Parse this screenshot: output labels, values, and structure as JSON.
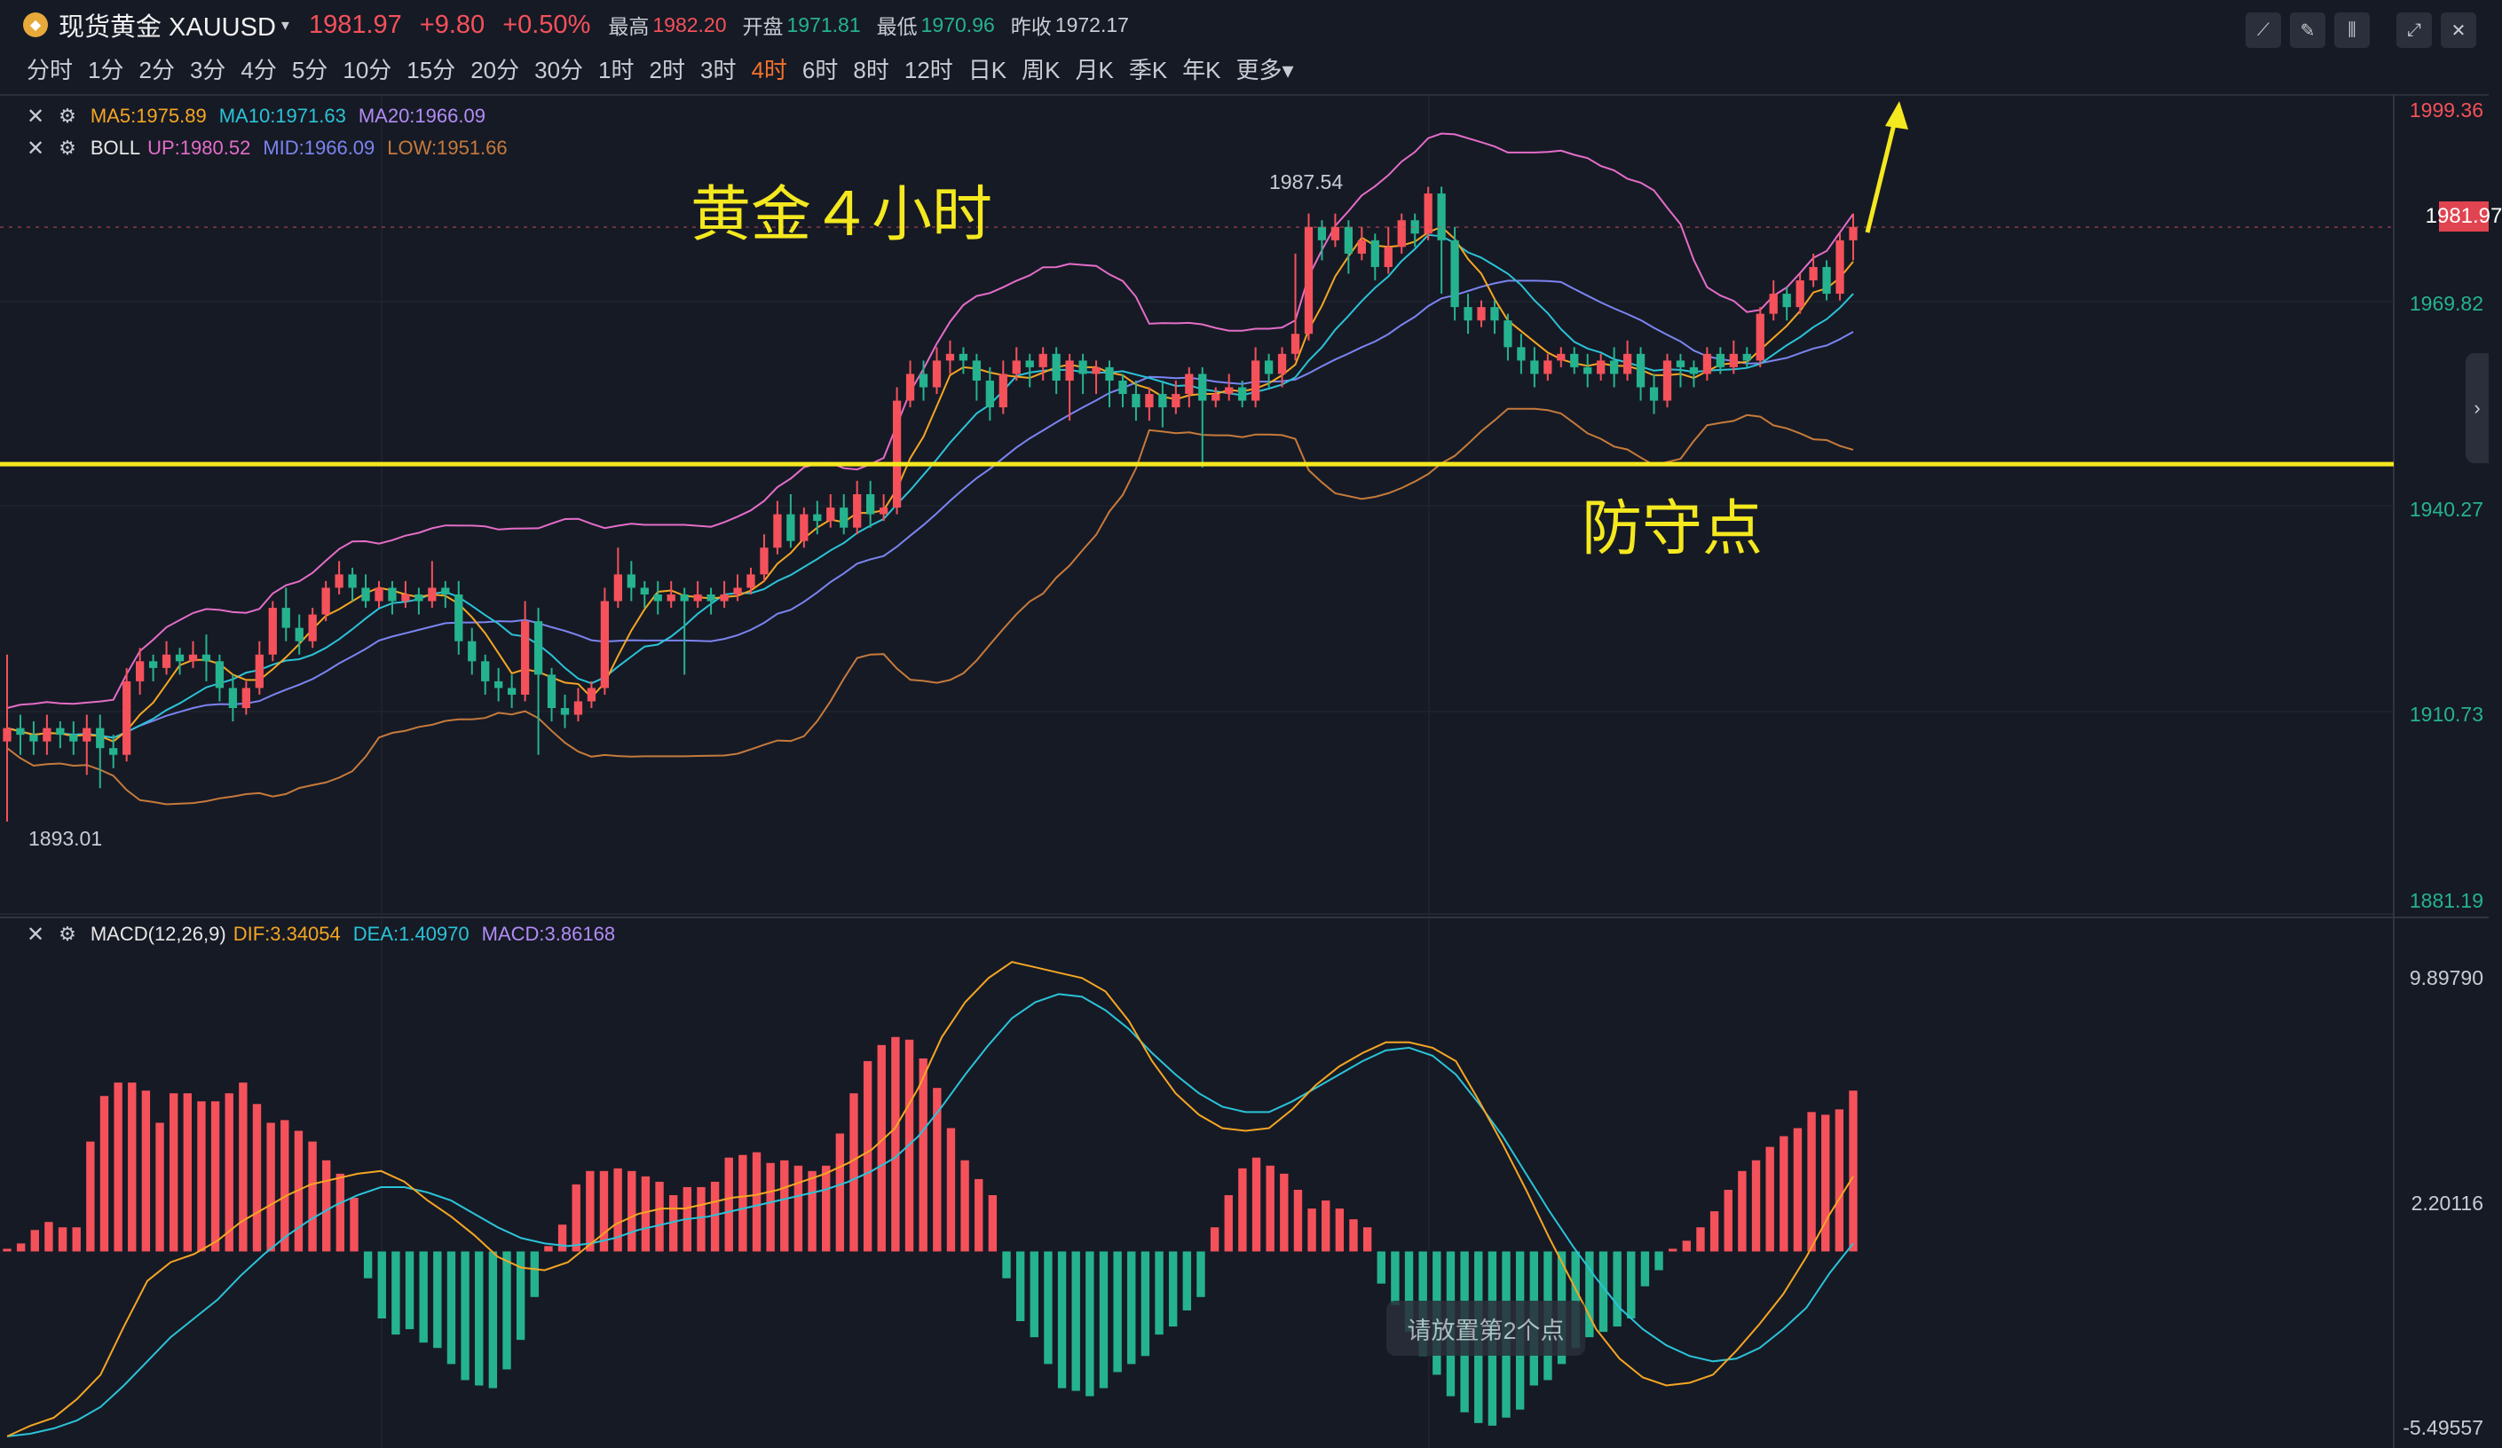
{
  "header": {
    "logo_icon": "gold-coin-icon",
    "symbol": "现货黄金 XAUUSD",
    "price": "1981.97",
    "change": "+9.80",
    "change_pct": "+0.50%",
    "high_label": "最高",
    "high": "1982.20",
    "open_label": "开盘",
    "open": "1971.81",
    "low_label": "最低",
    "low": "1970.96",
    "prev_close_label": "昨收",
    "prev_close": "1972.17",
    "colors": {
      "up": "#f5515a",
      "down": "#25b38f"
    }
  },
  "toolbar_icons": [
    "line-draw-icon",
    "pencil-icon",
    "candle-settings-icon",
    "fullscreen-icon",
    "close-icon"
  ],
  "periods": [
    "分时",
    "1分",
    "2分",
    "3分",
    "4分",
    "5分",
    "10分",
    "15分",
    "20分",
    "30分",
    "1时",
    "2时",
    "3时",
    "4时",
    "6时",
    "8时",
    "12时",
    "日K",
    "周K",
    "月K",
    "季K",
    "年K",
    "更多"
  ],
  "active_period": "4时",
  "indicators": {
    "ma": {
      "ma5": "MA5:1975.89",
      "ma10": "MA10:1971.63",
      "ma20": "MA20:1966.09"
    },
    "boll": {
      "name": "BOLL",
      "up": "UP:1980.52",
      "mid": "MID:1966.09",
      "low": "LOW:1951.66"
    },
    "macd": {
      "name": "MACD(12,26,9)",
      "dif": "DIF:3.34054",
      "dea": "DEA:1.40970",
      "macd": "MACD:3.86168"
    }
  },
  "price_axis": [
    "1999.36",
    "1969.82",
    "1940.27",
    "1910.73",
    "1881.19"
  ],
  "current_price_tag": "1981.97",
  "marks": {
    "high": "1987.54",
    "low": "1893.01"
  },
  "macd_axis": [
    "9.89790",
    "2.20116",
    "-5.49557"
  ],
  "annotations": {
    "title": "黄金４小时",
    "support": "防守点"
  },
  "hint": "请放置第2个点",
  "chart_data": {
    "type": "candlestick",
    "title": "",
    "ylim": [
      1881.19,
      1999.36
    ],
    "support_level": 1946.5,
    "candles": [
      [
        1905,
        1907,
        1918,
        1893
      ],
      [
        1907,
        1906,
        1909,
        1903
      ],
      [
        1906,
        1905,
        1908,
        1903
      ],
      [
        1905,
        1907,
        1909,
        1903
      ],
      [
        1907,
        1906,
        1908,
        1904
      ],
      [
        1906,
        1905,
        1908,
        1903
      ],
      [
        1905,
        1907,
        1909,
        1900
      ],
      [
        1907,
        1904,
        1909,
        1898
      ],
      [
        1904,
        1903,
        1906,
        1901
      ],
      [
        1903,
        1914,
        1916,
        1902
      ],
      [
        1914,
        1917,
        1919,
        1912
      ],
      [
        1917,
        1916,
        1918,
        1914
      ],
      [
        1916,
        1918,
        1920,
        1915
      ],
      [
        1918,
        1917,
        1919,
        1915
      ],
      [
        1917,
        1918,
        1920,
        1916
      ],
      [
        1918,
        1917,
        1921,
        1914
      ],
      [
        1917,
        1913,
        1918,
        1911
      ],
      [
        1913,
        1910,
        1915,
        1908
      ],
      [
        1910,
        1913,
        1914,
        1909
      ],
      [
        1913,
        1918,
        1920,
        1912
      ],
      [
        1918,
        1925,
        1926,
        1917
      ],
      [
        1925,
        1922,
        1928,
        1920
      ],
      [
        1922,
        1920,
        1924,
        1918
      ],
      [
        1920,
        1924,
        1925,
        1919
      ],
      [
        1924,
        1928,
        1929,
        1923
      ],
      [
        1928,
        1930,
        1932,
        1927
      ],
      [
        1930,
        1928,
        1931,
        1926
      ],
      [
        1928,
        1926,
        1930,
        1925
      ],
      [
        1926,
        1928,
        1929,
        1925
      ],
      [
        1928,
        1926,
        1929,
        1924
      ],
      [
        1926,
        1927,
        1929,
        1925
      ],
      [
        1927,
        1926,
        1928,
        1924
      ],
      [
        1926,
        1928,
        1932,
        1925
      ],
      [
        1928,
        1927,
        1929,
        1925
      ],
      [
        1927,
        1920,
        1929,
        1918
      ],
      [
        1920,
        1917,
        1922,
        1915
      ],
      [
        1917,
        1914,
        1918,
        1912
      ],
      [
        1914,
        1913,
        1916,
        1911
      ],
      [
        1913,
        1912,
        1915,
        1910
      ],
      [
        1912,
        1923,
        1926,
        1911
      ],
      [
        1923,
        1915,
        1925,
        1903
      ],
      [
        1915,
        1910,
        1916,
        1908
      ],
      [
        1910,
        1909,
        1912,
        1907
      ],
      [
        1909,
        1911,
        1913,
        1908
      ],
      [
        1911,
        1913,
        1914,
        1910
      ],
      [
        1913,
        1926,
        1928,
        1912
      ],
      [
        1926,
        1930,
        1934,
        1925
      ],
      [
        1930,
        1928,
        1932,
        1926
      ],
      [
        1928,
        1927,
        1929,
        1925
      ],
      [
        1927,
        1926,
        1929,
        1924
      ],
      [
        1926,
        1927,
        1929,
        1925
      ],
      [
        1927,
        1926,
        1928,
        1915
      ],
      [
        1926,
        1927,
        1929,
        1925
      ],
      [
        1927,
        1926,
        1928,
        1924
      ],
      [
        1926,
        1927,
        1929,
        1925
      ],
      [
        1927,
        1928,
        1930,
        1926
      ],
      [
        1928,
        1930,
        1931,
        1927
      ],
      [
        1930,
        1934,
        1936,
        1929
      ],
      [
        1934,
        1939,
        1941,
        1933
      ],
      [
        1939,
        1935,
        1942,
        1934
      ],
      [
        1935,
        1939,
        1940,
        1934
      ],
      [
        1939,
        1938,
        1941,
        1936
      ],
      [
        1938,
        1940,
        1942,
        1937
      ],
      [
        1940,
        1937,
        1942,
        1936
      ],
      [
        1937,
        1942,
        1944,
        1936
      ],
      [
        1942,
        1939,
        1944,
        1937
      ],
      [
        1939,
        1940,
        1942,
        1938
      ],
      [
        1940,
        1956,
        1958,
        1939
      ],
      [
        1956,
        1960,
        1962,
        1955
      ],
      [
        1960,
        1958,
        1962,
        1956
      ],
      [
        1958,
        1962,
        1964,
        1957
      ],
      [
        1962,
        1963,
        1965,
        1960
      ],
      [
        1963,
        1962,
        1964,
        1960
      ],
      [
        1962,
        1959,
        1963,
        1956
      ],
      [
        1959,
        1955,
        1961,
        1953
      ],
      [
        1955,
        1960,
        1962,
        1954
      ],
      [
        1960,
        1962,
        1964,
        1959
      ],
      [
        1962,
        1961,
        1963,
        1958
      ],
      [
        1961,
        1963,
        1964,
        1959
      ],
      [
        1963,
        1959,
        1964,
        1957
      ],
      [
        1959,
        1962,
        1963,
        1953
      ],
      [
        1962,
        1960,
        1963,
        1957
      ],
      [
        1960,
        1961,
        1962,
        1957
      ],
      [
        1961,
        1959,
        1962,
        1955
      ],
      [
        1959,
        1957,
        1960,
        1955
      ],
      [
        1957,
        1955,
        1959,
        1953
      ],
      [
        1955,
        1957,
        1958,
        1953
      ],
      [
        1957,
        1955,
        1959,
        1952
      ],
      [
        1955,
        1957,
        1959,
        1954
      ],
      [
        1957,
        1960,
        1961,
        1955
      ],
      [
        1960,
        1956,
        1961,
        1946
      ],
      [
        1956,
        1957,
        1958,
        1955
      ],
      [
        1957,
        1958,
        1960,
        1956
      ],
      [
        1958,
        1956,
        1959,
        1955
      ],
      [
        1956,
        1962,
        1964,
        1955
      ],
      [
        1962,
        1960,
        1963,
        1958
      ],
      [
        1960,
        1963,
        1964,
        1958
      ],
      [
        1963,
        1966,
        1978,
        1962
      ],
      [
        1966,
        1982,
        1984,
        1965
      ],
      [
        1982,
        1980,
        1983,
        1977
      ],
      [
        1980,
        1982,
        1984,
        1979
      ],
      [
        1982,
        1978,
        1983,
        1975
      ],
      [
        1978,
        1980,
        1982,
        1977
      ],
      [
        1980,
        1976,
        1981,
        1974
      ],
      [
        1976,
        1979,
        1982,
        1975
      ],
      [
        1979,
        1983,
        1984,
        1978
      ],
      [
        1983,
        1981,
        1984,
        1979
      ],
      [
        1981,
        1987,
        1988,
        1980
      ],
      [
        1987,
        1980,
        1988,
        1972
      ],
      [
        1980,
        1970,
        1982,
        1968
      ],
      [
        1970,
        1968,
        1972,
        1966
      ],
      [
        1968,
        1970,
        1971,
        1967
      ],
      [
        1970,
        1968,
        1971,
        1966
      ],
      [
        1968,
        1964,
        1969,
        1962
      ],
      [
        1964,
        1962,
        1966,
        1960
      ],
      [
        1962,
        1960,
        1964,
        1958
      ],
      [
        1960,
        1962,
        1963,
        1959
      ],
      [
        1962,
        1963,
        1964,
        1961
      ],
      [
        1963,
        1961,
        1964,
        1960
      ],
      [
        1961,
        1960,
        1963,
        1958
      ],
      [
        1960,
        1962,
        1963,
        1959
      ],
      [
        1962,
        1960,
        1964,
        1958
      ],
      [
        1960,
        1963,
        1965,
        1959
      ],
      [
        1963,
        1958,
        1964,
        1956
      ],
      [
        1958,
        1956,
        1960,
        1954
      ],
      [
        1956,
        1962,
        1963,
        1955
      ],
      [
        1962,
        1961,
        1963,
        1958
      ],
      [
        1961,
        1960,
        1962,
        1958
      ],
      [
        1960,
        1963,
        1964,
        1959
      ],
      [
        1963,
        1961,
        1964,
        1960
      ],
      [
        1961,
        1963,
        1965,
        1960
      ],
      [
        1963,
        1962,
        1964,
        1961
      ],
      [
        1962,
        1969,
        1970,
        1961
      ],
      [
        1969,
        1972,
        1974,
        1968
      ],
      [
        1972,
        1970,
        1973,
        1968
      ],
      [
        1970,
        1974,
        1975,
        1969
      ],
      [
        1974,
        1976,
        1978,
        1973
      ],
      [
        1976,
        1972,
        1977,
        1971
      ],
      [
        1972,
        1980,
        1981,
        1971
      ],
      [
        1980,
        1982,
        1984,
        1977
      ]
    ],
    "macd_hist": [
      0.1,
      0.3,
      0.8,
      1.1,
      0.9,
      0.9,
      4.1,
      5.8,
      6.3,
      6.3,
      6.0,
      4.8,
      5.9,
      5.9,
      5.6,
      5.6,
      5.9,
      6.3,
      5.5,
      4.8,
      4.9,
      4.5,
      4.1,
      3.4,
      2.9,
      2.0,
      -1.0,
      -2.5,
      -3.1,
      -2.9,
      -3.4,
      -3.6,
      -4.2,
      -4.8,
      -5.0,
      -5.1,
      -4.4,
      -3.3,
      -1.7,
      0.2,
      1.0,
      2.5,
      3.0,
      3.0,
      3.1,
      3.0,
      2.8,
      2.6,
      2.1,
      2.4,
      2.4,
      2.6,
      3.5,
      3.6,
      3.7,
      3.3,
      3.4,
      3.2,
      3.0,
      3.2,
      4.4,
      5.9,
      7.1,
      7.7,
      8.0,
      7.9,
      7.2,
      6.1,
      4.6,
      3.4,
      2.7,
      2.1,
      -1.0,
      -2.6,
      -3.2,
      -4.2,
      -5.1,
      -5.2,
      -5.4,
      -5.1,
      -4.5,
      -4.2,
      -3.9,
      -3.1,
      -2.8,
      -2.2,
      -1.7,
      0.9,
      2.1,
      3.1,
      3.5,
      3.2,
      2.9,
      2.3,
      1.6,
      1.9,
      1.6,
      1.2,
      0.9,
      -1.2,
      -2.0,
      -3.0,
      -3.9,
      -4.6,
      -5.4,
      -6.0,
      -6.4,
      -6.5,
      -6.2,
      -5.9,
      -5.0,
      -4.8,
      -4.2,
      -3.6,
      -3.2,
      -3.0,
      -2.8,
      -2.5,
      -1.3,
      -0.7,
      0.1,
      0.4,
      0.9,
      1.5,
      2.3,
      3.0,
      3.4,
      3.9,
      4.3,
      4.6,
      5.2,
      5.1,
      5.3,
      6.0
    ],
    "dif": [
      -6.9,
      -6.5,
      -6.2,
      -5.5,
      -4.6,
      -2.8,
      -1.1,
      -0.4,
      -0.1,
      0.4,
      1.1,
      1.6,
      2.1,
      2.5,
      2.7,
      2.9,
      3.0,
      2.6,
      1.9,
      1.3,
      0.6,
      -0.2,
      -0.6,
      -0.7,
      -0.4,
      0.3,
      1.0,
      1.4,
      1.6,
      1.6,
      1.8,
      2.0,
      2.1,
      2.3,
      2.6,
      2.9,
      3.3,
      3.8,
      4.6,
      6.1,
      8.0,
      9.3,
      10.2,
      10.8,
      10.6,
      10.4,
      10.2,
      9.7,
      8.6,
      7.1,
      5.9,
      5.1,
      4.6,
      4.5,
      4.6,
      5.3,
      6.2,
      6.9,
      7.4,
      7.8,
      7.8,
      7.6,
      7.1,
      5.6,
      4.0,
      2.3,
      0.5,
      -1.2,
      -2.9,
      -4.0,
      -4.7,
      -5.0,
      -4.9,
      -4.6,
      -3.7,
      -2.7,
      -1.6,
      -0.2,
      1.4,
      2.8
    ],
    "dea": [
      -6.9,
      -6.8,
      -6.6,
      -6.3,
      -5.8,
      -5.0,
      -4.1,
      -3.2,
      -2.5,
      -1.8,
      -0.9,
      -0.1,
      0.6,
      1.2,
      1.7,
      2.1,
      2.4,
      2.4,
      2.2,
      1.9,
      1.4,
      0.9,
      0.5,
      0.3,
      0.2,
      0.3,
      0.5,
      0.8,
      1.0,
      1.2,
      1.3,
      1.5,
      1.7,
      1.9,
      2.1,
      2.3,
      2.6,
      3.0,
      3.5,
      4.3,
      5.4,
      6.6,
      7.7,
      8.7,
      9.3,
      9.6,
      9.5,
      9.0,
      8.3,
      7.4,
      6.6,
      5.9,
      5.4,
      5.2,
      5.2,
      5.6,
      6.1,
      6.6,
      7.1,
      7.5,
      7.6,
      7.3,
      6.6,
      5.5,
      4.3,
      2.9,
      1.5,
      0.2,
      -1.0,
      -2.1,
      -2.9,
      -3.5,
      -3.9,
      -4.1,
      -4.0,
      -3.6,
      -2.9,
      -2.1,
      -0.8,
      0.3
    ]
  }
}
